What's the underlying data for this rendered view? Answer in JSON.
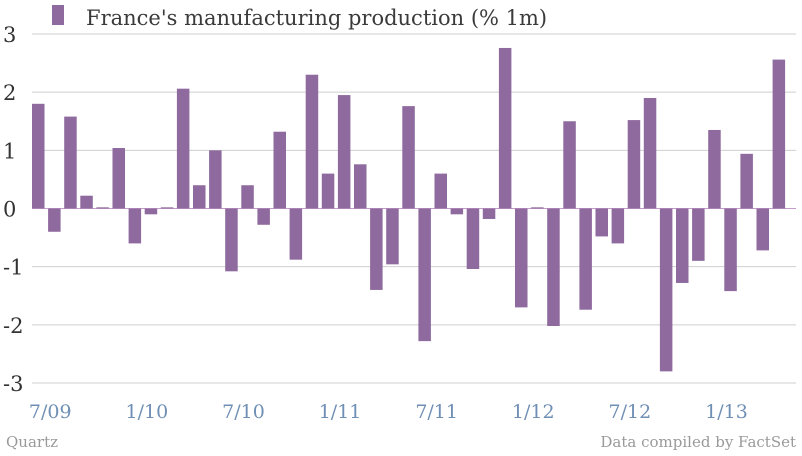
{
  "chart_data": {
    "type": "bar",
    "legend": {
      "label": "France's manufacturing production (% 1m)",
      "placement": "top-left"
    },
    "series": [
      {
        "name": "France's manufacturing production (% 1m)",
        "color": "#8e6a9e",
        "values": [
          1.8,
          -0.4,
          1.58,
          0.22,
          0.02,
          1.04,
          -0.6,
          -0.1,
          0.02,
          2.06,
          0.4,
          1.0,
          -1.08,
          0.4,
          -0.28,
          1.32,
          -0.88,
          2.3,
          0.6,
          1.95,
          0.76,
          -1.4,
          -0.96,
          1.76,
          -2.28,
          0.6,
          -0.1,
          -1.04,
          -0.18,
          2.76,
          -1.7,
          0.02,
          -2.02,
          1.5,
          -1.74,
          -0.48,
          -0.6,
          1.52,
          1.9,
          -2.8,
          -1.28,
          -0.9,
          1.35,
          -1.42,
          0.94,
          -0.72,
          2.56
        ]
      }
    ],
    "x_tick_labels": [
      "7/09",
      "1/10",
      "7/10",
      "1/11",
      "7/11",
      "1/12",
      "7/12",
      "1/13"
    ],
    "x_tick_every_n_months": 6,
    "y_ticks": [
      "3",
      "2",
      "1",
      "0",
      "-1",
      "-2",
      "-3"
    ],
    "ylim": [
      -3,
      3
    ],
    "grid": true,
    "xlabel": "",
    "ylabel": ""
  },
  "footer": {
    "source_left": "Quartz",
    "source_right": "Data compiled by FactSet"
  }
}
